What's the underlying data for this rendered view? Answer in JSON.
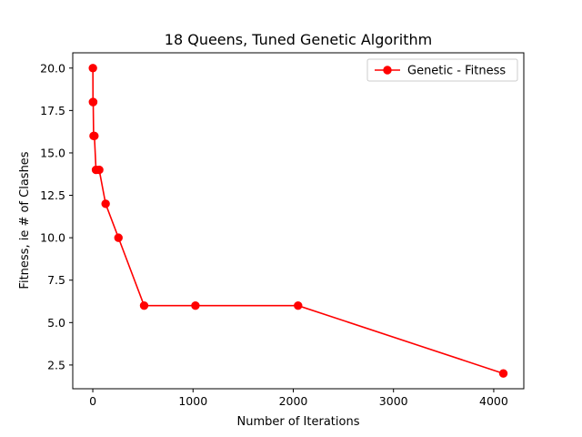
{
  "chart_data": {
    "type": "line",
    "title": "18 Queens, Tuned Genetic Algorithm",
    "xlabel": "Number of Iterations",
    "ylabel": "Fitness, ie # of Clashes",
    "xlim": [
      -200,
      4300
    ],
    "ylim": [
      1.1,
      20.9
    ],
    "xticks": [
      0,
      1000,
      2000,
      3000,
      4000
    ],
    "xtick_labels": [
      "0",
      "1000",
      "2000",
      "3000",
      "4000"
    ],
    "yticks": [
      2.5,
      5.0,
      7.5,
      10.0,
      12.5,
      15.0,
      17.5,
      20.0
    ],
    "ytick_labels": [
      "2.5",
      "5.0",
      "7.5",
      "10.0",
      "12.5",
      "15.0",
      "17.5",
      "20.0"
    ],
    "grid": false,
    "legend_position": "top-right",
    "series": [
      {
        "name": "Genetic - Fitness",
        "color": "#ff0000",
        "marker": "circle",
        "x": [
          1,
          2,
          4,
          8,
          16,
          32,
          64,
          128,
          256,
          512,
          1024,
          2048,
          4096
        ],
        "y": [
          20,
          18,
          18,
          16,
          16,
          14,
          14,
          12,
          10,
          6,
          6,
          6,
          2
        ]
      }
    ]
  }
}
